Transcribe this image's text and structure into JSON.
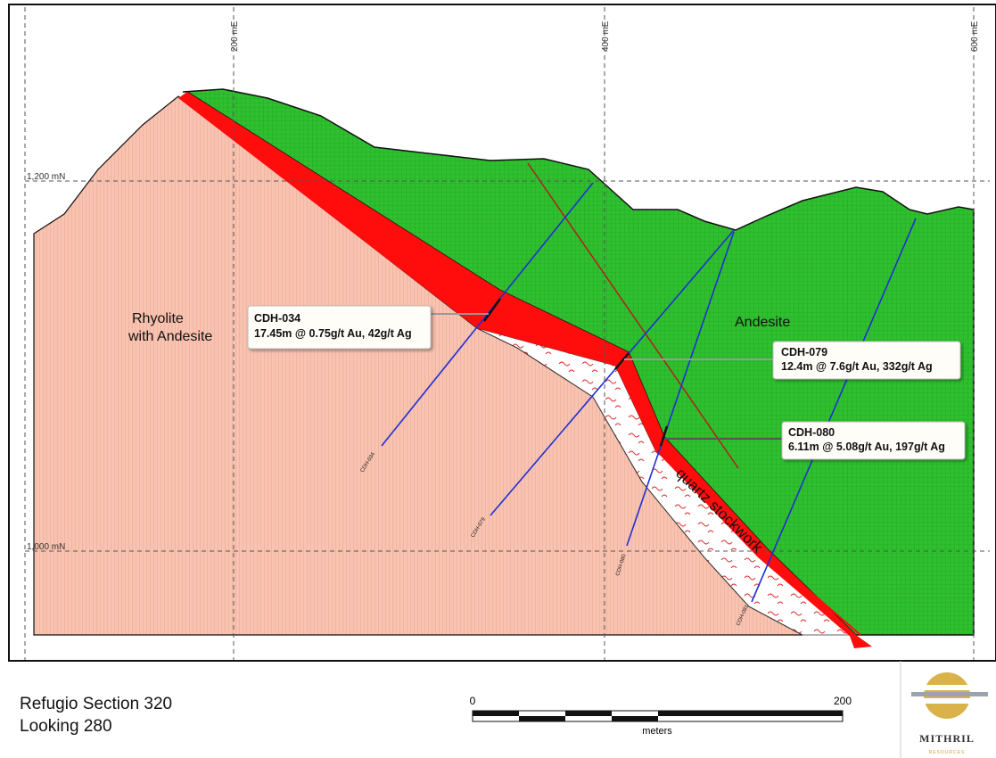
{
  "grid": {
    "eastings": [
      "200 mE",
      "400 mE",
      "600 mE"
    ],
    "northings": [
      "1,200 mN",
      "1,000 mN"
    ]
  },
  "units": {
    "rhyolite": [
      "Rhyolite",
      "with Andesite"
    ],
    "andesite": "Andesite",
    "stockwork": "quartz stockwork"
  },
  "holes": [
    "CDH-034",
    "CDH-079",
    "CDH-080",
    "CDH-081"
  ],
  "callouts": [
    {
      "hole": "CDH-034",
      "result": "17.45m @ 0.75g/t Au, 42g/t Ag"
    },
    {
      "hole": "CDH-079",
      "result": "12.4m @ 7.6g/t Au, 332g/t Ag"
    },
    {
      "hole": "CDH-080",
      "result": "6.11m @ 5.08g/t Au, 197g/t Ag"
    }
  ],
  "footer": {
    "title": "Refugio Section 320",
    "subtitle": "Looking 280",
    "scale": {
      "start": "0",
      "end": "200",
      "unit": "meters"
    },
    "logo": {
      "name": "MITHRIL",
      "tagline": "RESOURCES"
    }
  }
}
